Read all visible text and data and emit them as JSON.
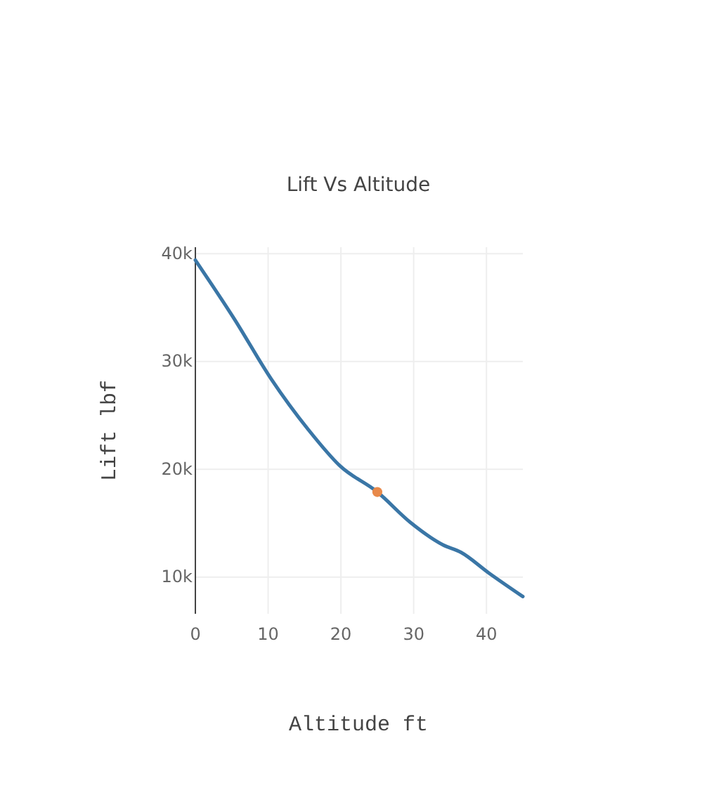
{
  "chart_data": {
    "type": "line",
    "title": "Lift Vs Altitude",
    "xlabel": "Altitude ft",
    "ylabel": "Lift lbf",
    "xlim": [
      0,
      45
    ],
    "xticks": [
      0,
      10,
      20,
      30,
      40
    ],
    "ylim": [
      6600,
      40600
    ],
    "yticks": [
      {
        "value": 10000,
        "label": "10k"
      },
      {
        "value": 20000,
        "label": "20k"
      },
      {
        "value": 30000,
        "label": "30k"
      },
      {
        "value": 40000,
        "label": "40k"
      }
    ],
    "grid": true,
    "series": [
      {
        "color": "#3a76a6",
        "marker": "none",
        "x": [
          0,
          5.3,
          10.4,
          15.5,
          19.9,
          25,
          29.5,
          34,
          36.5,
          40.3,
          45
        ],
        "values": [
          39400,
          34000,
          28400,
          23700,
          20300,
          17900,
          15100,
          13000,
          12300,
          10400,
          8200
        ]
      },
      {
        "type": "scatter",
        "color": "#e8894a",
        "marker": "circle",
        "x": [
          25
        ],
        "values": [
          17900
        ]
      }
    ]
  }
}
